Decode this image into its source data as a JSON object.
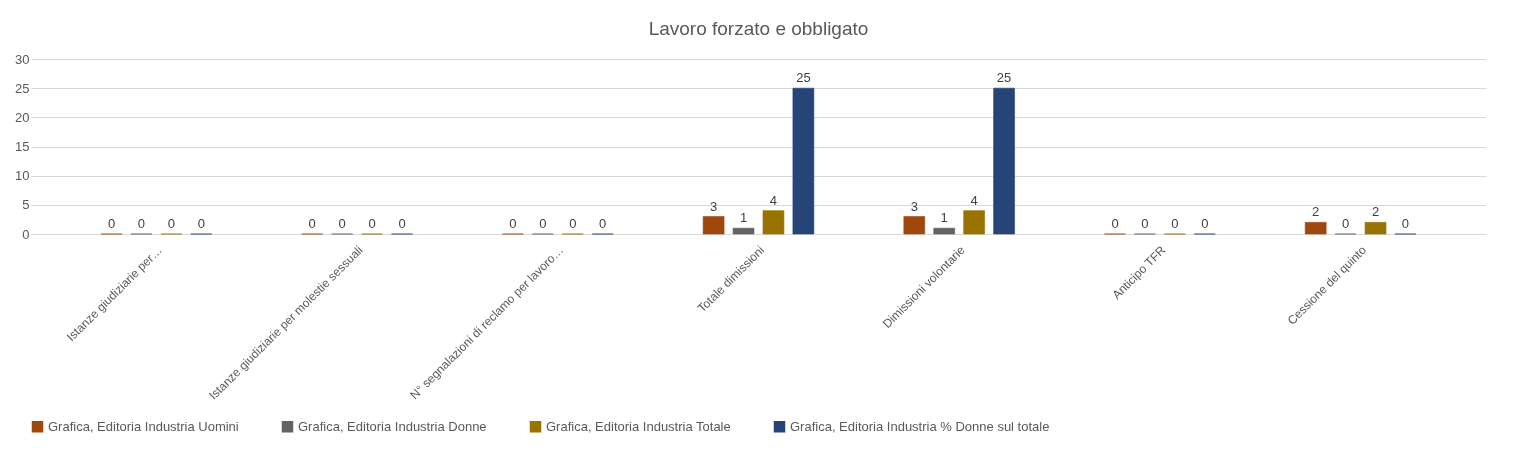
{
  "chart_data": {
    "type": "bar",
    "title": "Lavoro forzato e obbligato",
    "categories": [
      "Istanze giudiziarie per…",
      "Istanze giudiziarie per molestie sessuali",
      "N° segnalazioni di reclamo per lavoro…",
      "Totale dimissioni",
      "Dimissioni volontarie",
      "Anticipo TFR",
      "Cessione del quinto"
    ],
    "series": [
      {
        "name": "Grafica, Editoria Industria Uomini",
        "color": "#9e480e",
        "values": [
          0,
          0,
          0,
          3,
          3,
          0,
          2
        ]
      },
      {
        "name": "Grafica, Editoria Industria Donne",
        "color": "#636363",
        "values": [
          0,
          0,
          0,
          1,
          1,
          0,
          0
        ]
      },
      {
        "name": "Grafica, Editoria Industria Totale",
        "color": "#997300",
        "values": [
          0,
          0,
          0,
          4,
          4,
          0,
          2
        ]
      },
      {
        "name": "Grafica, Editoria Industria % Donne sul totale",
        "color": "#264478",
        "values": [
          0,
          0,
          0,
          25,
          25,
          0,
          0
        ]
      }
    ],
    "ylim": [
      0,
      30
    ],
    "yticks": [
      0,
      5,
      10,
      15,
      20,
      25,
      30
    ],
    "grid": "y",
    "legend": "bottom",
    "data_labels": true
  }
}
